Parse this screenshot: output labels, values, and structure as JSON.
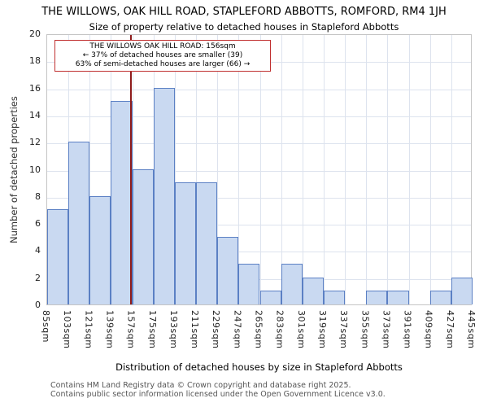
{
  "chart_data": {
    "type": "bar",
    "title": "THE WILLOWS, OAK HILL ROAD, STAPLEFORD ABBOTTS, ROMFORD, RM4 1JH",
    "subtitle": "Size of property relative to detached houses in Stapleford Abbotts",
    "xlabel": "Distribution of detached houses by size in Stapleford Abbotts",
    "ylabel": "Number of detached properties",
    "bin_edges_sqm": [
      85,
      103,
      121,
      139,
      157,
      175,
      193,
      211,
      229,
      247,
      265,
      283,
      301,
      319,
      337,
      355,
      373,
      391,
      409,
      427,
      445
    ],
    "tick_labels": [
      "85sqm",
      "103sqm",
      "121sqm",
      "139sqm",
      "157sqm",
      "175sqm",
      "193sqm",
      "211sqm",
      "229sqm",
      "247sqm",
      "265sqm",
      "283sqm",
      "301sqm",
      "319sqm",
      "337sqm",
      "355sqm",
      "373sqm",
      "391sqm",
      "409sqm",
      "427sqm",
      "445sqm"
    ],
    "values": [
      7,
      12,
      8,
      15,
      10,
      16,
      9,
      9,
      5,
      3,
      1,
      3,
      2,
      1,
      0,
      1,
      1,
      0,
      1,
      2
    ],
    "ylim": [
      0,
      20
    ],
    "ytick_step": 2,
    "grid": "on",
    "legend": "none",
    "marker_value_sqm": 156,
    "annotation": {
      "line1": "THE WILLOWS OAK HILL ROAD: 156sqm",
      "line2": "← 37% of detached houses are smaller (39)",
      "line3": "63% of semi-detached houses are larger (66) →"
    },
    "colors": {
      "bar_fill": "#c9d9f1",
      "bar_border": "#5b80c4",
      "marker_line": "#8e1b1b",
      "grid": "#dde3ee",
      "annotation_border": "#c03030"
    }
  },
  "footer": {
    "line1": "Contains HM Land Registry data © Crown copyright and database right 2025.",
    "line2": "Contains public sector information licensed under the Open Government Licence v3.0."
  }
}
